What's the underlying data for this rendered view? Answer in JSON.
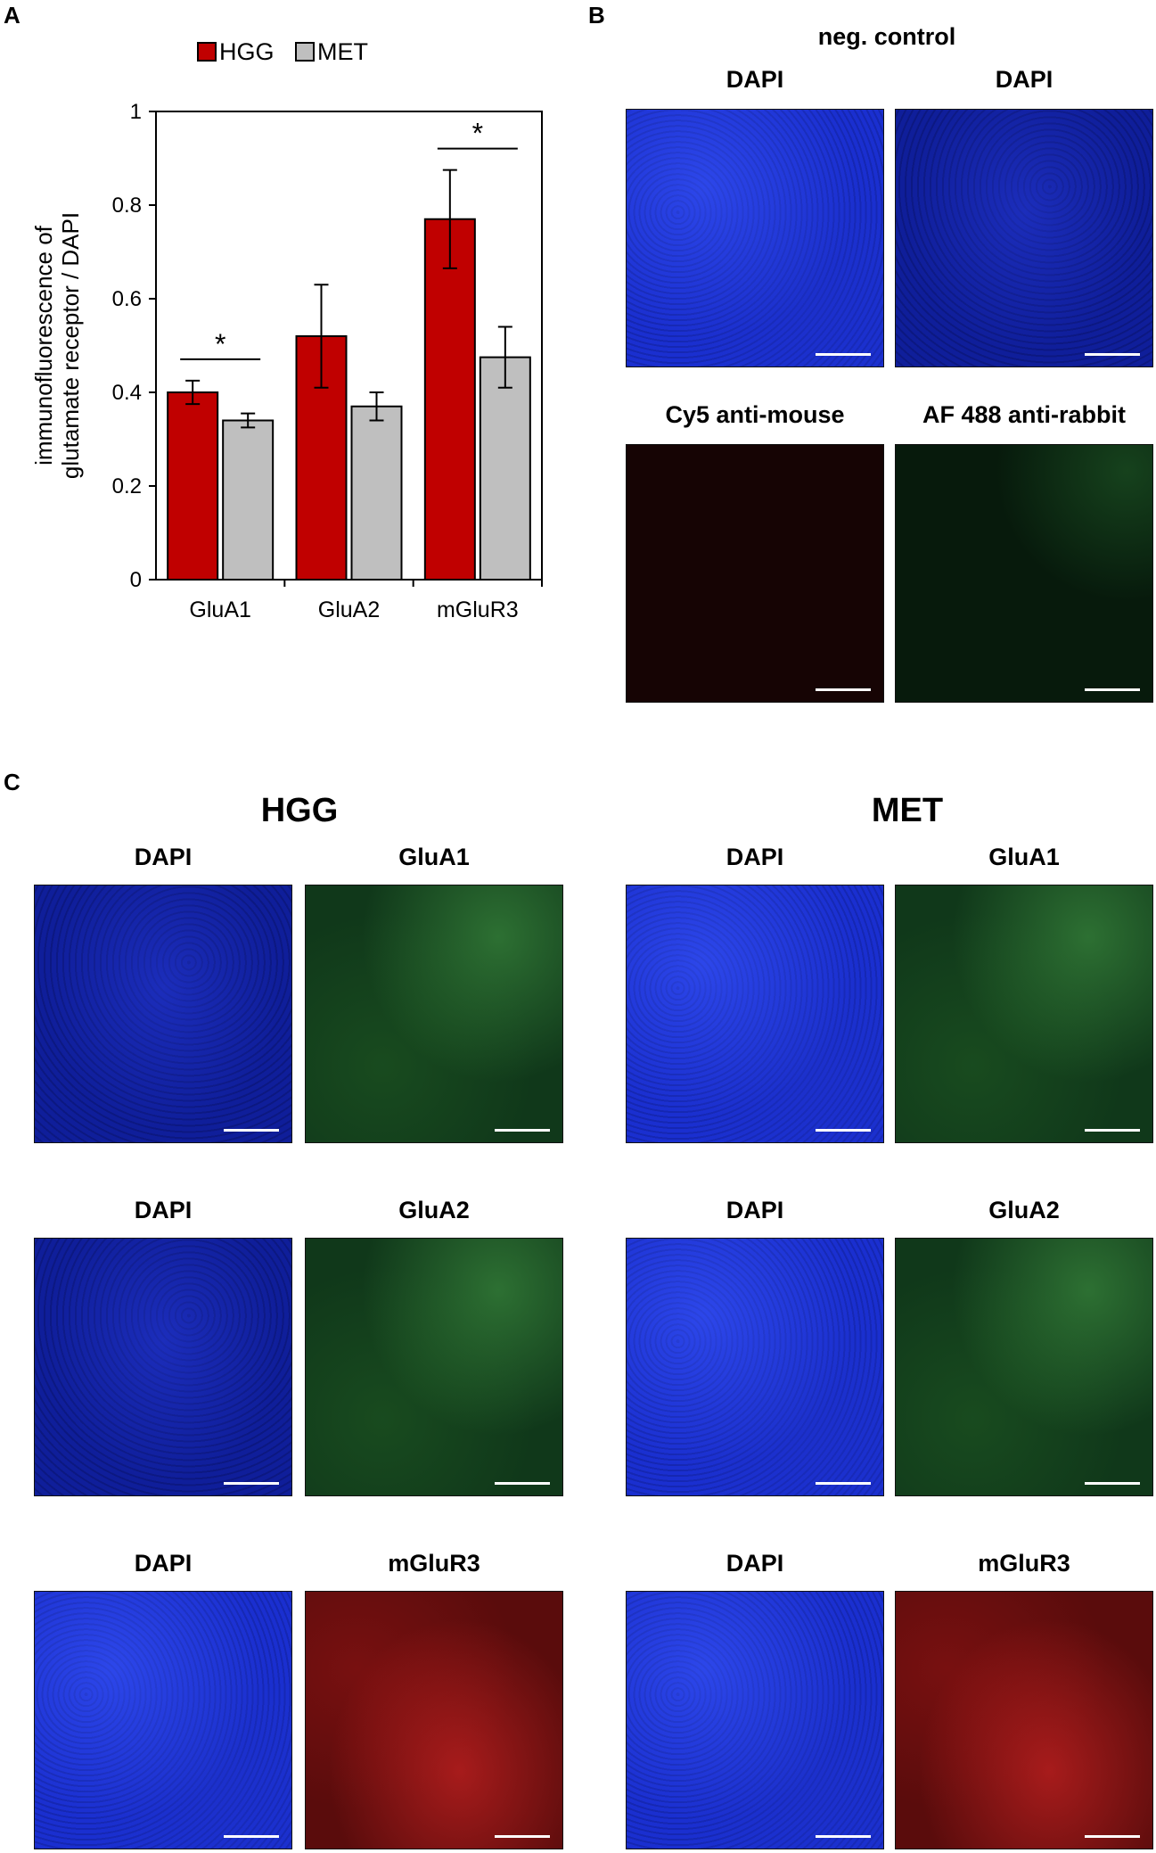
{
  "panels": {
    "A": "A",
    "B": "B",
    "C": "C"
  },
  "chart_data": {
    "type": "bar",
    "categories": [
      "GluA1",
      "GluA2",
      "mGluR3"
    ],
    "series": [
      {
        "name": "HGG",
        "values": [
          0.4,
          0.52,
          0.77
        ],
        "errors": [
          0.025,
          0.11,
          0.105
        ],
        "color": "#c00000"
      },
      {
        "name": "MET",
        "values": [
          0.34,
          0.37,
          0.475
        ],
        "errors": [
          0.015,
          0.03,
          0.065
        ],
        "color": "#bfbfbf"
      }
    ],
    "ylabel": "immunofluorescence of glutamate receptor / DAPI",
    "ylabel_lines": [
      "immunofluorescence of",
      "glutamate receptor  / DAPI"
    ],
    "ylim": [
      0,
      1
    ],
    "yticks": [
      "0",
      "0.2",
      "0.4",
      "0.6",
      "0.8",
      "1"
    ],
    "significance": [
      {
        "category": "GluA1",
        "label": "*"
      },
      {
        "category": "mGluR3",
        "label": "*"
      }
    ],
    "legend_placement": "top"
  },
  "panel_b": {
    "title": "neg. control",
    "labels": [
      "DAPI",
      "DAPI",
      "Cy5 anti-mouse",
      "AF 488  anti-rabbit"
    ]
  },
  "panel_c": {
    "hgg_title": "HGG",
    "met_title": "MET",
    "rows": [
      {
        "left": "DAPI",
        "right": "GluA1"
      },
      {
        "left": "DAPI",
        "right": "GluA2"
      },
      {
        "left": "DAPI",
        "right": "mGluR3"
      }
    ]
  }
}
